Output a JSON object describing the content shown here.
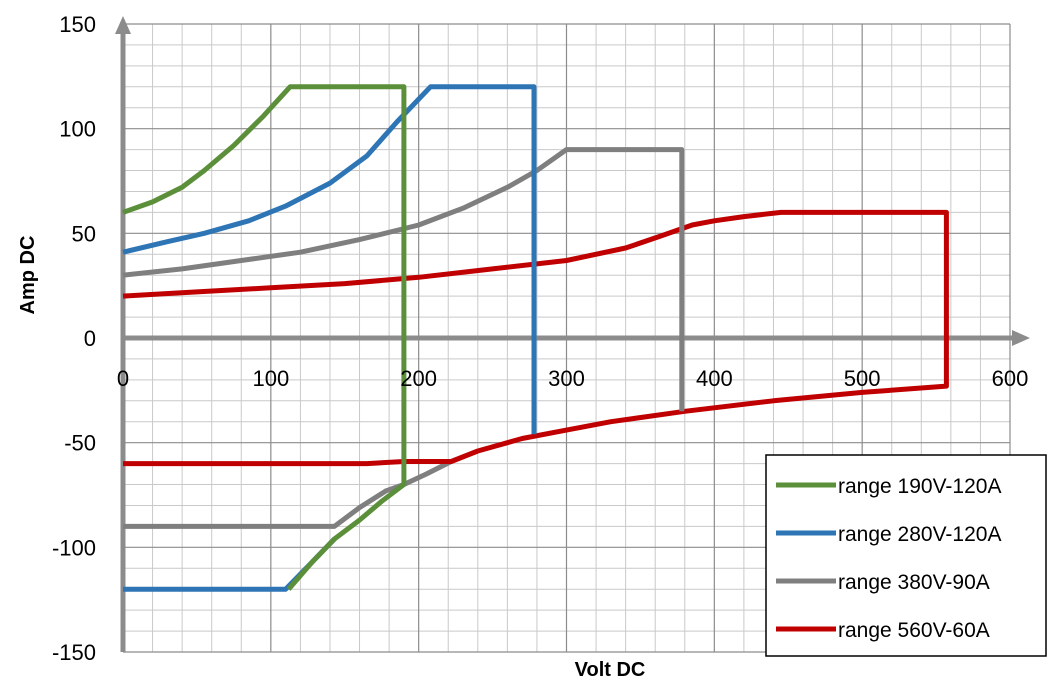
{
  "chart_data": {
    "type": "line",
    "title": "",
    "xlabel": "Volt DC",
    "ylabel": "Amp DC",
    "xlim": [
      0,
      600
    ],
    "ylim": [
      -150,
      150
    ],
    "x_ticks": [
      0,
      100,
      200,
      300,
      400,
      500,
      600
    ],
    "y_ticks": [
      -150,
      -100,
      -50,
      0,
      50,
      100,
      150
    ],
    "x_tick_labels": [
      "0",
      "100",
      "200",
      "300",
      "400",
      "500",
      "600"
    ],
    "y_tick_labels": [
      "-150",
      "-100",
      "-50",
      "0",
      "50",
      "100",
      "150"
    ],
    "grid": true,
    "minor_grid": true,
    "legend_position": "bottom-right",
    "series": [
      {
        "name": "range 190V-120A",
        "color": "#5b8f3a",
        "points": [
          [
            0,
            60
          ],
          [
            20,
            65
          ],
          [
            40,
            72
          ],
          [
            55,
            80
          ],
          [
            75,
            92
          ],
          [
            95,
            106
          ],
          [
            113,
            120
          ],
          [
            190,
            120
          ],
          [
            190,
            -70
          ],
          [
            175,
            -78
          ],
          [
            160,
            -87
          ],
          [
            143,
            -96
          ],
          [
            128,
            -107
          ],
          [
            112,
            -120
          ]
        ]
      },
      {
        "name": "range 280V-120A",
        "color": "#2e75b6",
        "points": [
          [
            0,
            41
          ],
          [
            30,
            46
          ],
          [
            55,
            50
          ],
          [
            85,
            56
          ],
          [
            110,
            63
          ],
          [
            140,
            74
          ],
          [
            165,
            87
          ],
          [
            185,
            103
          ],
          [
            208,
            120
          ],
          [
            278,
            120
          ],
          [
            278,
            -46
          ]
        ]
      },
      {
        "name": "range 380V-90A",
        "color": "#7f7f7f",
        "points": [
          [
            0,
            30
          ],
          [
            40,
            33
          ],
          [
            80,
            37
          ],
          [
            120,
            41
          ],
          [
            160,
            47
          ],
          [
            200,
            54
          ],
          [
            230,
            62
          ],
          [
            260,
            72
          ],
          [
            280,
            80
          ],
          [
            300,
            90
          ],
          [
            378,
            90
          ],
          [
            378,
            -35
          ]
        ]
      },
      {
        "name": "range 560V-60A",
        "color": "#c00000",
        "points": [
          [
            0,
            20
          ],
          [
            50,
            22
          ],
          [
            100,
            24
          ],
          [
            150,
            26
          ],
          [
            200,
            29
          ],
          [
            250,
            33
          ],
          [
            300,
            37
          ],
          [
            340,
            43
          ],
          [
            365,
            49
          ],
          [
            385,
            54
          ],
          [
            400,
            56
          ],
          [
            420,
            58
          ],
          [
            445,
            60
          ],
          [
            557,
            60
          ],
          [
            557,
            -23
          ],
          [
            500,
            -26
          ],
          [
            440,
            -30
          ],
          [
            380,
            -35
          ],
          [
            330,
            -40
          ],
          [
            300,
            -44
          ],
          [
            270,
            -48
          ],
          [
            240,
            -54
          ],
          [
            222,
            -59
          ],
          [
            190,
            -59
          ],
          [
            165,
            -60
          ],
          [
            0,
            -60
          ]
        ]
      }
    ],
    "extra_segments": [
      {
        "series": "range 380V-90A",
        "color": "#7f7f7f",
        "points": [
          [
            0,
            -90
          ],
          [
            143,
            -90
          ],
          [
            160,
            -81
          ],
          [
            178,
            -73
          ],
          [
            190,
            -70
          ],
          [
            205,
            -65
          ],
          [
            222,
            -59
          ]
        ]
      },
      {
        "series": "range 280V-120A",
        "color": "#2e75b6",
        "points": [
          [
            0,
            -120
          ],
          [
            110,
            -120
          ],
          [
            128,
            -107
          ],
          [
            143,
            -96
          ]
        ]
      }
    ]
  }
}
